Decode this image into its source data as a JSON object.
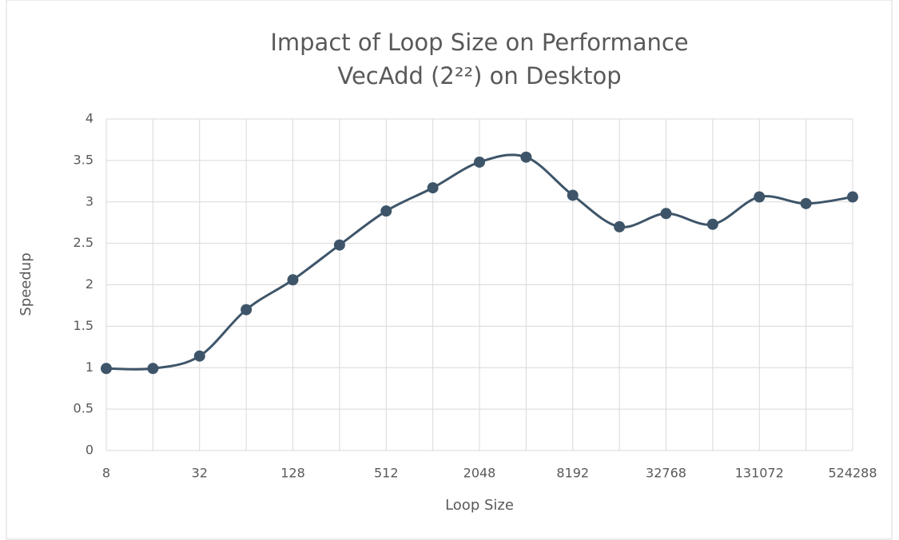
{
  "chart_data": {
    "type": "line",
    "title": "Impact of Loop Size on Performance",
    "subtitle": "VecAdd (2²²) on Desktop",
    "x_label": "Loop Size",
    "y_label": "Speedup",
    "categories": [
      "8",
      null,
      "32",
      null,
      "128",
      null,
      "512",
      null,
      "2048",
      null,
      "8192",
      null,
      "32768",
      null,
      "131072",
      null,
      "524288"
    ],
    "series": [
      {
        "name": "Speedup",
        "color": "#3e5569",
        "values": [
          0.99,
          0.99,
          1.14,
          1.7,
          2.06,
          2.48,
          2.89,
          3.17,
          3.48,
          3.54,
          3.08,
          2.7,
          2.86,
          2.73,
          3.06,
          2.98,
          3.06
        ]
      }
    ],
    "ylim": [
      0,
      4
    ],
    "yticks": [
      0,
      0.5,
      1,
      1.5,
      2,
      2.5,
      3,
      3.5,
      4
    ],
    "grid": true,
    "smooth": true
  }
}
